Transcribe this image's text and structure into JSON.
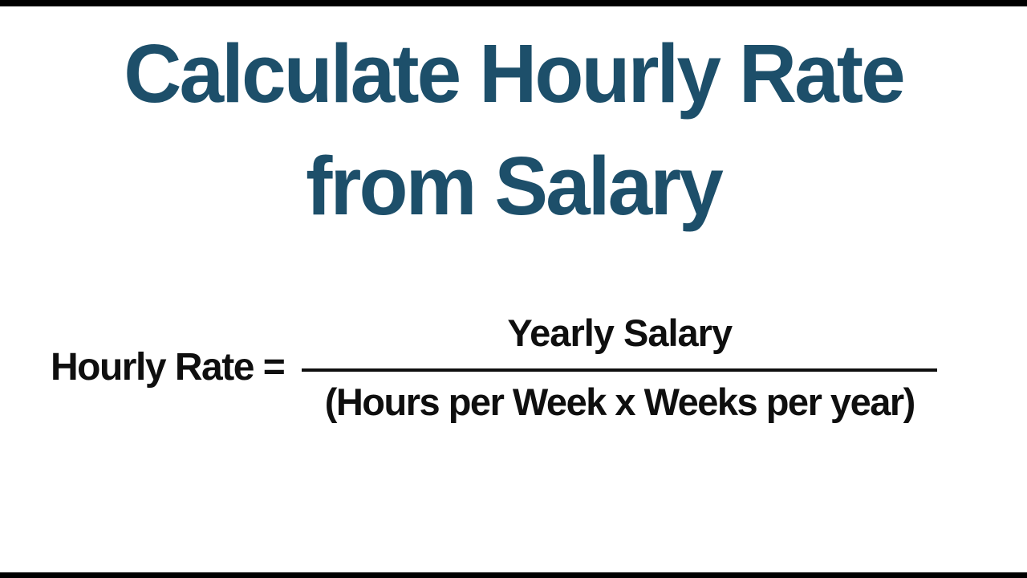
{
  "page": {
    "background_color": "#ffffff",
    "letterbox_color": "#000000"
  },
  "title": {
    "line1": "Calculate Hourly Rate",
    "line2": "from Salary",
    "color": "#1d4f6a"
  },
  "formula": {
    "lhs": "Hourly Rate =",
    "numerator": "Yearly Salary",
    "denominator": "(Hours per Week x Weeks per year)",
    "text_color": "#0f0f0f"
  }
}
